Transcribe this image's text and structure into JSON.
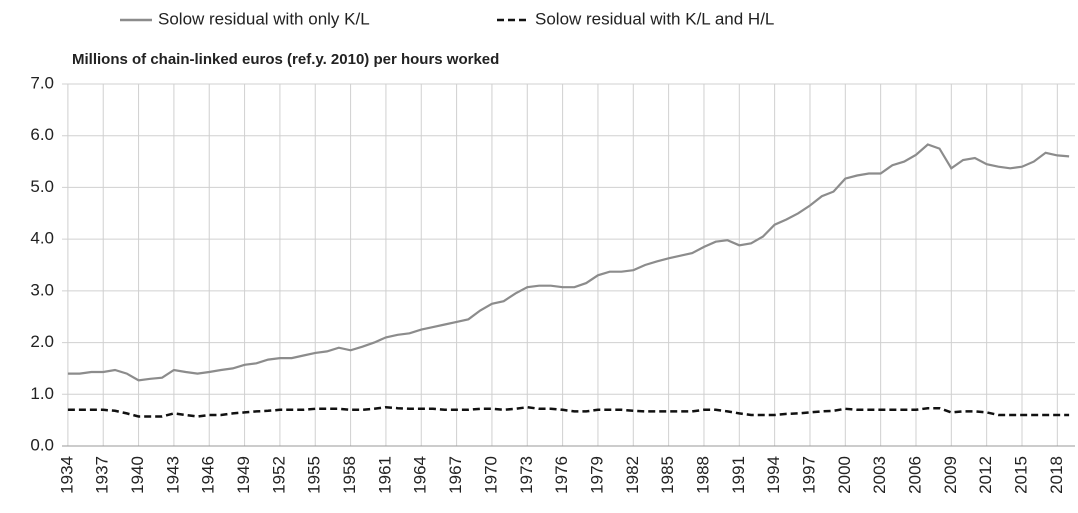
{
  "chart_data": {
    "type": "line",
    "title": "Millions of chain-linked euros (ref.y. 2010)  per hours worked",
    "categories": [
      "1934",
      null,
      null,
      "1937",
      null,
      null,
      "1940",
      null,
      null,
      "1943",
      null,
      null,
      "1946",
      null,
      null,
      "1949",
      null,
      null,
      "1952",
      null,
      null,
      "1955",
      null,
      null,
      "1958",
      null,
      null,
      "1961",
      null,
      null,
      "1964",
      null,
      null,
      "1967",
      null,
      null,
      "1970",
      null,
      null,
      "1973",
      null,
      null,
      "1976",
      null,
      null,
      "1979",
      null,
      null,
      "1982",
      null,
      null,
      "1985",
      null,
      null,
      "1988",
      null,
      null,
      "1991",
      null,
      null,
      "1994",
      null,
      null,
      "1997",
      null,
      null,
      "2000",
      null,
      null,
      "2003",
      null,
      null,
      "2006",
      null,
      null,
      "2009",
      null,
      null,
      "2012",
      null,
      null,
      "2015",
      null,
      null,
      "2018",
      null
    ],
    "series": [
      {
        "name": "Solow residual with only K/L",
        "color": "#8c8c8c",
        "dash": "solid",
        "values": [
          1.4,
          1.4,
          1.43,
          1.43,
          1.47,
          1.4,
          1.27,
          1.3,
          1.32,
          1.47,
          1.43,
          1.4,
          1.43,
          1.47,
          1.5,
          1.57,
          1.6,
          1.67,
          1.7,
          1.7,
          1.75,
          1.8,
          1.83,
          1.9,
          1.85,
          1.92,
          2.0,
          2.1,
          2.15,
          2.18,
          2.25,
          2.3,
          2.35,
          2.4,
          2.45,
          2.62,
          2.75,
          2.8,
          2.95,
          3.07,
          3.1,
          3.1,
          3.07,
          3.07,
          3.15,
          3.3,
          3.37,
          3.37,
          3.4,
          3.5,
          3.57,
          3.63,
          3.68,
          3.73,
          3.85,
          3.95,
          3.98,
          3.88,
          3.92,
          4.05,
          4.28,
          4.38,
          4.5,
          4.65,
          4.83,
          4.92,
          5.17,
          5.23,
          5.27,
          5.27,
          5.43,
          5.5,
          5.63,
          5.83,
          5.75,
          5.37,
          5.53,
          5.57,
          5.45,
          5.4,
          5.37,
          5.4,
          5.5,
          5.67,
          5.62,
          5.6
        ]
      },
      {
        "name": "Solow residual with K/L and H/L",
        "color": "#111111",
        "dash": "dashed",
        "values": [
          0.7,
          0.7,
          0.7,
          0.7,
          0.68,
          0.63,
          0.57,
          0.57,
          0.57,
          0.63,
          0.6,
          0.57,
          0.6,
          0.6,
          0.63,
          0.65,
          0.67,
          0.68,
          0.7,
          0.7,
          0.7,
          0.72,
          0.72,
          0.72,
          0.7,
          0.7,
          0.72,
          0.75,
          0.73,
          0.72,
          0.72,
          0.72,
          0.7,
          0.7,
          0.7,
          0.72,
          0.72,
          0.7,
          0.72,
          0.75,
          0.72,
          0.72,
          0.7,
          0.67,
          0.67,
          0.7,
          0.7,
          0.7,
          0.68,
          0.67,
          0.67,
          0.67,
          0.67,
          0.67,
          0.7,
          0.7,
          0.67,
          0.63,
          0.6,
          0.6,
          0.6,
          0.62,
          0.63,
          0.65,
          0.67,
          0.68,
          0.72,
          0.7,
          0.7,
          0.7,
          0.7,
          0.7,
          0.7,
          0.73,
          0.73,
          0.65,
          0.67,
          0.67,
          0.65,
          0.6,
          0.6,
          0.6,
          0.6,
          0.6,
          0.6,
          0.6
        ]
      }
    ],
    "ylim": [
      0,
      7
    ],
    "yticks": [
      {
        "value": 0,
        "label": "0.0"
      },
      {
        "value": 1,
        "label": "1.0"
      },
      {
        "value": 2,
        "label": "2.0"
      },
      {
        "value": 3,
        "label": "3.0"
      },
      {
        "value": 4,
        "label": "4.0"
      },
      {
        "value": 5,
        "label": "5.0"
      },
      {
        "value": 6,
        "label": "6.0"
      },
      {
        "value": 7,
        "label": "7.0"
      }
    ],
    "grid": true
  }
}
